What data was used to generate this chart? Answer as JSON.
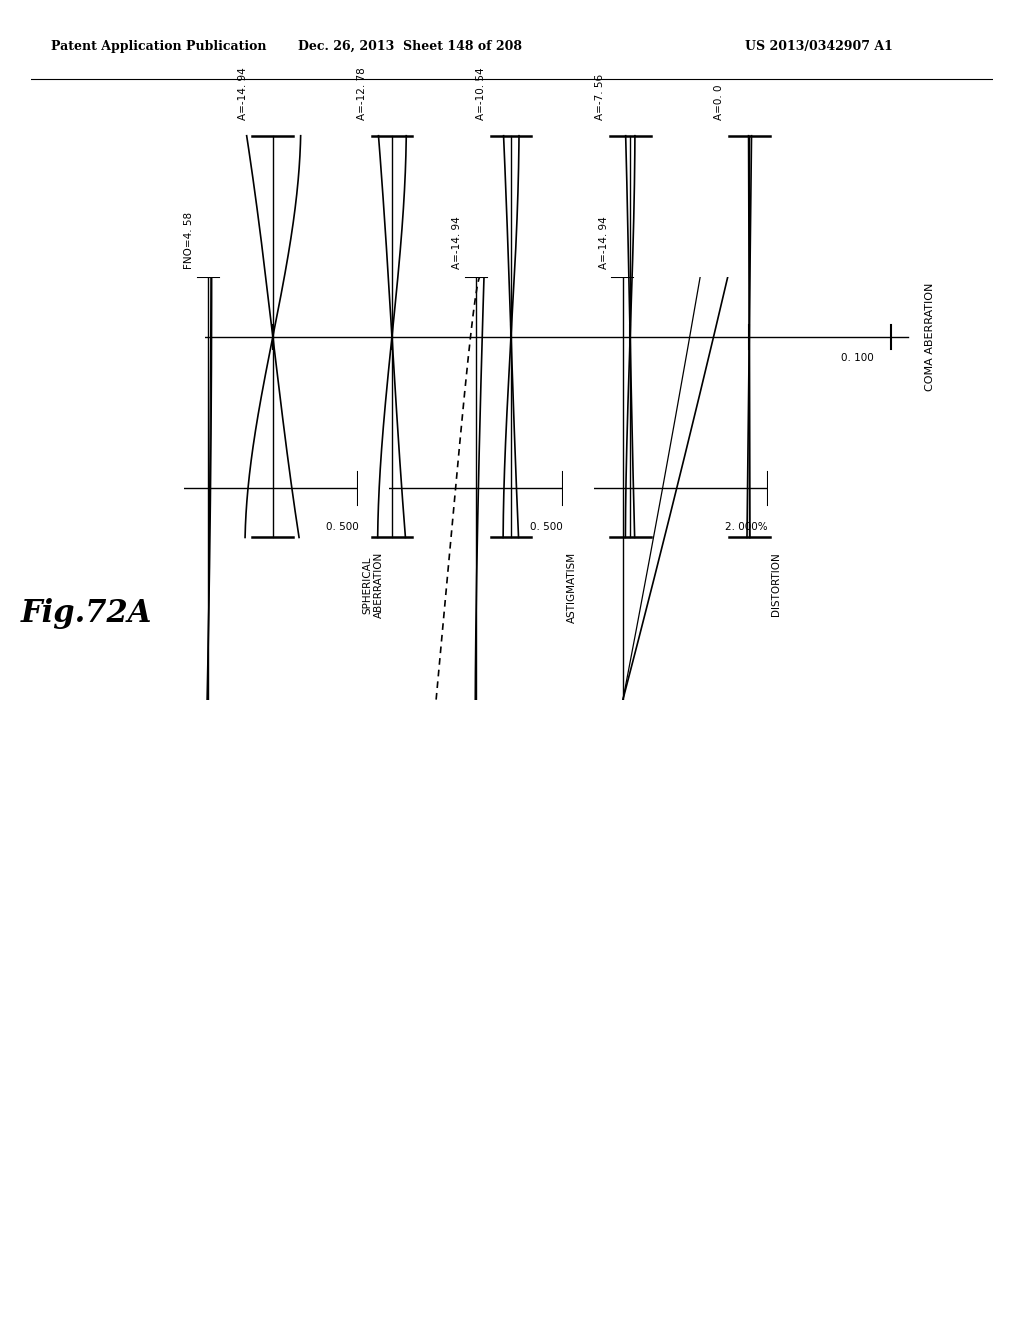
{
  "header_left": "Patent Application Publication",
  "header_middle": "Dec. 26, 2013  Sheet 148 of 208",
  "header_right": "US 2013/0342907 A1",
  "fig_label": "Fig.72A",
  "background_color": "#ffffff",
  "spherical_aberration": {
    "label": "FNO=4. 58",
    "x_label": "0. 500",
    "y_label": "SPHERICAL\nABERRATION"
  },
  "astigmatism": {
    "label": "A=-14. 94",
    "x_label": "0. 500",
    "y_label": "ASTIGMATISM"
  },
  "distortion": {
    "label": "A=-14. 94",
    "x_label": "2. 000%",
    "y_label": "DISTORTION"
  },
  "coma_labels": [
    "A=-14. 94",
    "A=-12. 78",
    "A=-10. 54",
    "A=-7. 56",
    "A=0. 0"
  ],
  "coma_x_label": "0. 100",
  "coma_y_label": "COMA ABERRATION",
  "coma_aberrations": [
    0.35,
    0.18,
    0.1,
    0.06,
    0.02
  ]
}
